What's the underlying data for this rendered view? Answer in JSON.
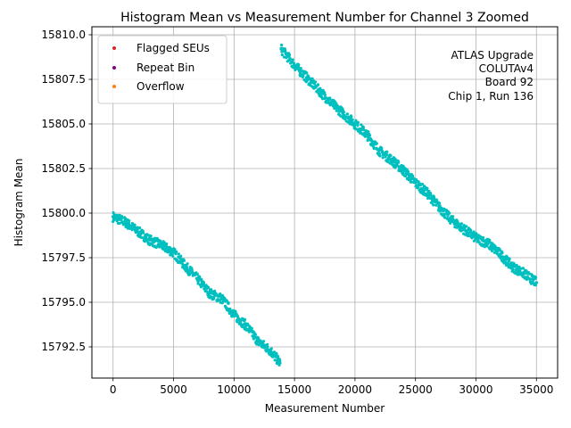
{
  "chart_data": {
    "type": "scatter",
    "title": "Histogram Mean vs Measurement Number for Channel 3 Zoomed",
    "xlabel": "Measurement Number",
    "ylabel": "Histogram Mean",
    "xlim": [
      -1750,
      36750
    ],
    "ylim": [
      15790.75,
      15810.45
    ],
    "xticks": [
      0,
      5000,
      10000,
      15000,
      20000,
      25000,
      30000,
      35000
    ],
    "xtick_labels": [
      "0",
      "5000",
      "10000",
      "15000",
      "20000",
      "25000",
      "30000",
      "35000"
    ],
    "yticks": [
      15792.5,
      15795.0,
      15797.5,
      15800.0,
      15802.5,
      15805.0,
      15807.5,
      15810.0
    ],
    "ytick_labels": [
      "15792.5",
      "15795.0",
      "15797.5",
      "15800.0",
      "15802.5",
      "15805.0",
      "15807.5",
      "15810.0"
    ],
    "grid": true,
    "legend": {
      "position": "top-left",
      "entries": [
        {
          "label": "Flagged SEUs",
          "color": "#d62728"
        },
        {
          "label": "Repeat Bin",
          "color": "#800080"
        },
        {
          "label": "Overflow",
          "color": "#ff7f0e"
        }
      ]
    },
    "annotation": {
      "position": "top-right",
      "lines": [
        "ATLAS Upgrade",
        "COLUTAv4",
        "Board 92",
        "Chip 1, Run 136"
      ]
    },
    "series": [
      {
        "name": "Histogram Mean (segment 1)",
        "color": "#00bfbf",
        "x": [
          0,
          1000,
          2000,
          3000,
          4000,
          5000,
          6000,
          7000,
          8000,
          9000,
          10000,
          11000,
          12000,
          13000,
          13800
        ],
        "y": [
          15799.8,
          15799.5,
          15799.0,
          15798.5,
          15798.2,
          15797.8,
          15797.0,
          15796.3,
          15795.5,
          15795.2,
          15794.3,
          15793.7,
          15792.8,
          15792.3,
          15791.6
        ]
      },
      {
        "name": "Histogram Mean (segment 2)",
        "color": "#00bfbf",
        "x": [
          13900,
          15000,
          16000,
          17000,
          18000,
          19000,
          20000,
          21000,
          22000,
          23000,
          24000,
          25000,
          26000,
          27000,
          28000,
          29000,
          30000,
          31000,
          32000,
          33000,
          34000,
          35000
        ],
        "y": [
          15809.2,
          15808.3,
          15807.6,
          15806.9,
          15806.2,
          15805.6,
          15805.0,
          15804.4,
          15803.5,
          15803.0,
          15802.4,
          15801.7,
          15801.1,
          15800.3,
          15799.6,
          15799.1,
          15798.6,
          15798.3,
          15797.7,
          15797.0,
          15796.6,
          15796.1
        ]
      }
    ]
  }
}
